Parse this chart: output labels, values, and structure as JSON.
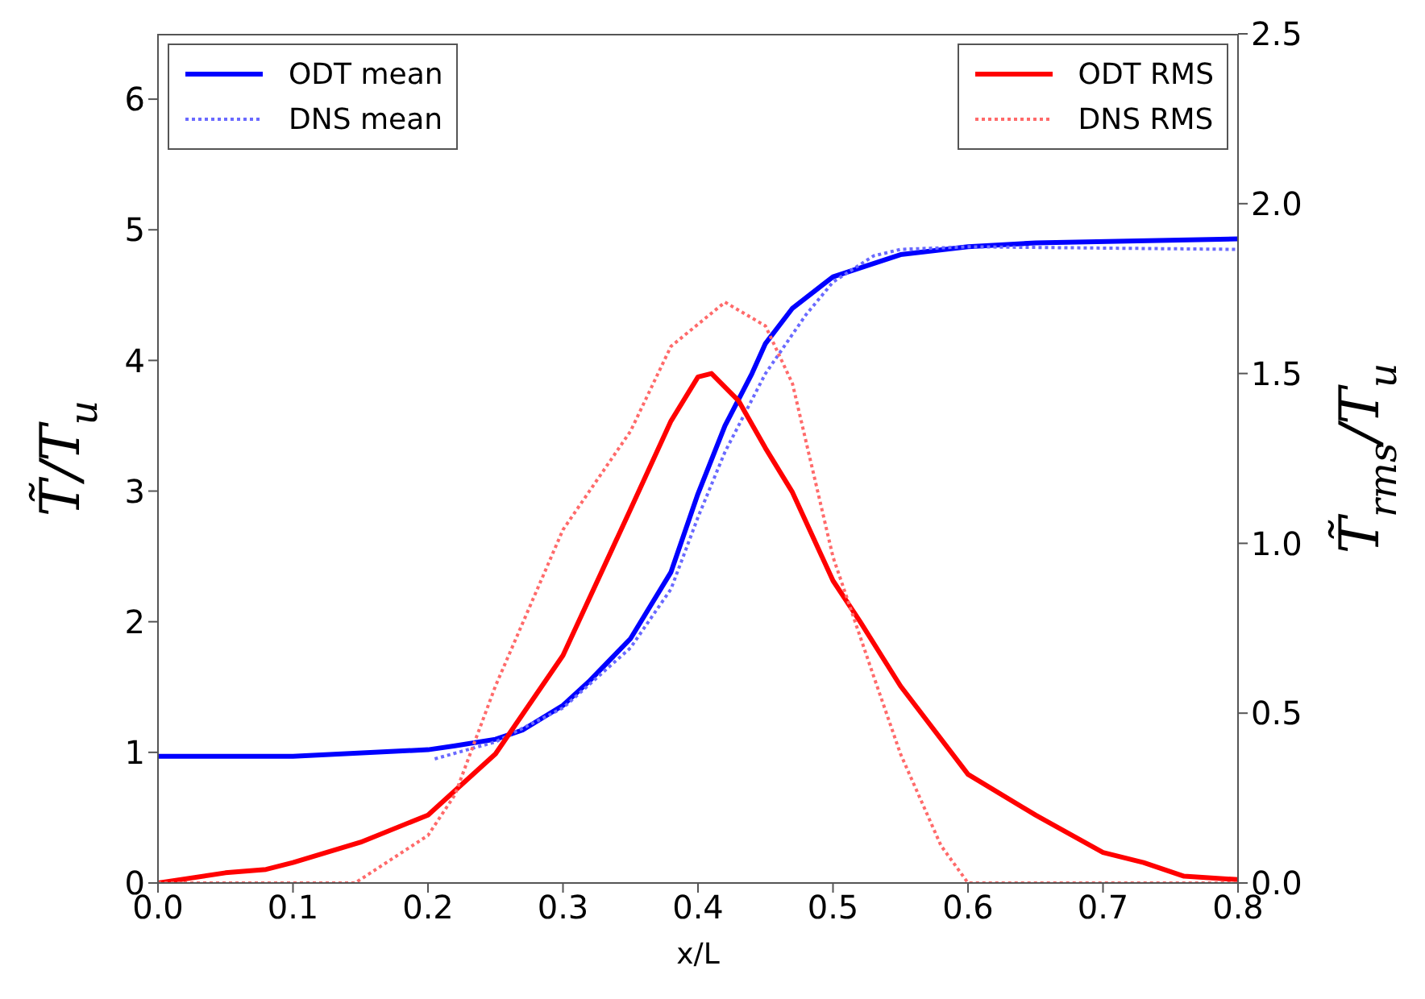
{
  "chart_data": {
    "type": "line",
    "xlabel": "x/L",
    "ylabel": "T̃/T$_{u}$",
    "y2label": "T̃$_{rms}$/T$_{u}$",
    "xlim": [
      0,
      0.8
    ],
    "xticks": [
      {
        "value": 0,
        "label": "0.0"
      },
      0.1,
      0.2,
      0.3,
      0.4,
      0.5,
      0.6,
      0.7,
      0.8
    ],
    "ylim": [
      0,
      6.5
    ],
    "yticks": [
      0,
      1,
      2,
      3,
      4,
      5,
      6
    ],
    "y2lim": [
      0,
      2.5
    ],
    "y2ticks": [
      {
        "value": 0,
        "label": "0.0"
      },
      0.5,
      {
        "value": 1,
        "label": "1.0"
      },
      1.5,
      {
        "value": 2,
        "label": "2.0"
      },
      2.5
    ],
    "legend": "top",
    "grid": false,
    "series": [
      {
        "name": "ODT mean",
        "color": "#0000ff",
        "line_style": "solid",
        "axis": "y",
        "x": [
          0,
          0.1,
          0.2,
          0.22,
          0.25,
          0.27,
          0.3,
          0.32,
          0.35,
          0.38,
          0.4,
          0.42,
          0.44,
          0.45,
          0.47,
          0.5,
          0.55,
          0.6,
          0.65,
          0.8
        ],
        "values": [
          0.97,
          0.97,
          1.02,
          1.05,
          1.1,
          1.17,
          1.36,
          1.55,
          1.87,
          2.38,
          2.98,
          3.5,
          3.9,
          4.13,
          4.4,
          4.64,
          4.81,
          4.87,
          4.9,
          4.93
        ]
      },
      {
        "name": "DNS mean",
        "color": "#6a6aff",
        "line_style": "dotted",
        "axis": "y",
        "x": [
          0.205,
          0.25,
          0.3,
          0.35,
          0.38,
          0.4,
          0.42,
          0.45,
          0.48,
          0.5,
          0.53,
          0.55,
          0.6,
          0.8
        ],
        "values": [
          0.95,
          1.08,
          1.34,
          1.8,
          2.25,
          2.8,
          3.3,
          3.9,
          4.35,
          4.6,
          4.8,
          4.85,
          4.87,
          4.85
        ]
      },
      {
        "name": "ODT RMS",
        "color": "#ff0000",
        "line_style": "solid",
        "axis": "y2",
        "x": [
          0,
          0.05,
          0.08,
          0.1,
          0.15,
          0.2,
          0.25,
          0.3,
          0.35,
          0.38,
          0.4,
          0.41,
          0.43,
          0.45,
          0.47,
          0.5,
          0.52,
          0.55,
          0.6,
          0.65,
          0.7,
          0.73,
          0.76,
          0.8
        ],
        "values": [
          0,
          0.03,
          0.04,
          0.06,
          0.12,
          0.2,
          0.38,
          0.67,
          1.1,
          1.36,
          1.49,
          1.5,
          1.42,
          1.28,
          1.15,
          0.89,
          0.77,
          0.58,
          0.32,
          0.2,
          0.09,
          0.06,
          0.02,
          0.01
        ]
      },
      {
        "name": "DNS RMS",
        "color": "#ff6a6a",
        "line_style": "dotted",
        "axis": "y2",
        "x": [
          0,
          0.146,
          0.2,
          0.22,
          0.25,
          0.3,
          0.35,
          0.38,
          0.42,
          0.45,
          0.47,
          0.5,
          0.53,
          0.55,
          0.58,
          0.6,
          0.8
        ],
        "values": [
          0,
          0,
          0.14,
          0.26,
          0.58,
          1.04,
          1.33,
          1.58,
          1.71,
          1.64,
          1.47,
          0.96,
          0.61,
          0.38,
          0.11,
          0,
          0
        ]
      }
    ]
  }
}
